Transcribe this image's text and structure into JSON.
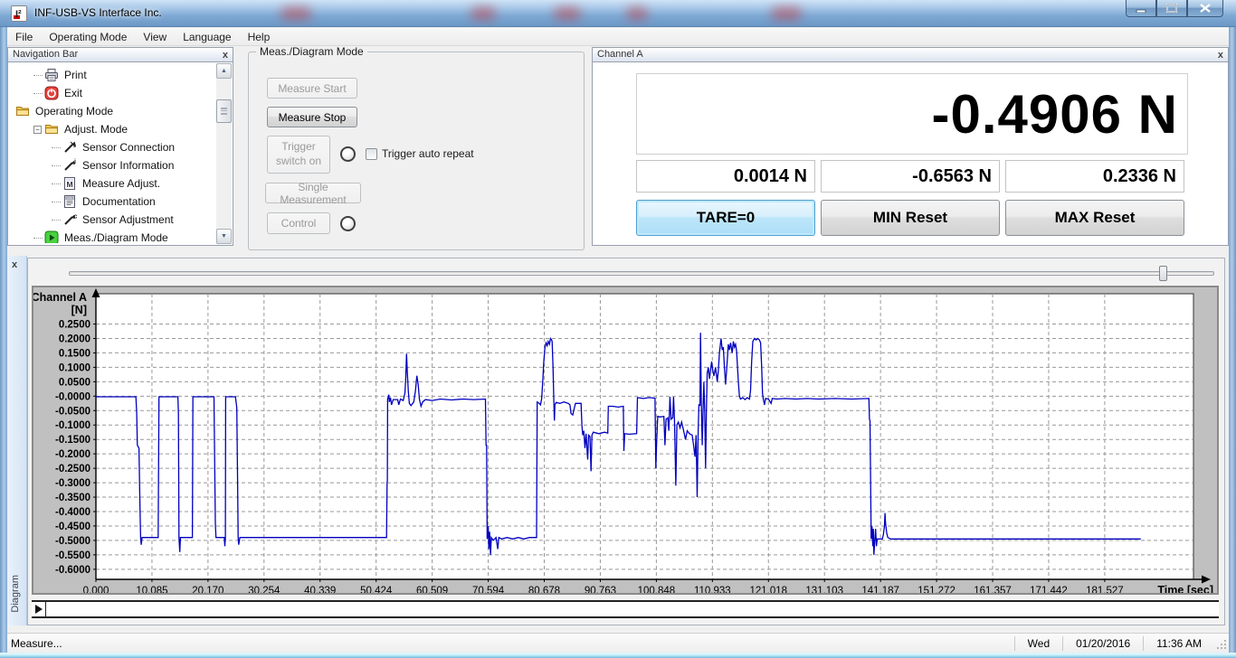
{
  "window": {
    "title": "INF-USB-VS Interface Inc."
  },
  "menu": [
    "File",
    "Operating Mode",
    "View",
    "Language",
    "Help"
  ],
  "nav": {
    "title": "Navigation Bar",
    "items": [
      {
        "label": "Print",
        "icon": "printer-icon",
        "level": 1
      },
      {
        "label": "Exit",
        "icon": "exit-icon",
        "level": 1
      },
      {
        "label": "Operating Mode",
        "icon": "folder-icon",
        "level": 0
      },
      {
        "label": "Adjust. Mode",
        "icon": "folder-icon",
        "level": 1,
        "expander": "minus"
      },
      {
        "label": "Sensor Connection",
        "icon": "sensor-connection-icon",
        "level": 2
      },
      {
        "label": "Sensor Information",
        "icon": "sensor-information-icon",
        "level": 2
      },
      {
        "label": "Measure Adjust.",
        "icon": "measure-adjust-icon",
        "level": 2
      },
      {
        "label": "Documentation",
        "icon": "documentation-icon",
        "level": 2
      },
      {
        "label": "Sensor Adjustment",
        "icon": "sensor-adjustment-icon",
        "level": 2
      },
      {
        "label": "Meas./Diagram Mode",
        "icon": "play-icon",
        "level": 1
      }
    ]
  },
  "meas": {
    "title": "Meas./Diagram Mode",
    "measure_start": "Measure Start",
    "measure_stop": "Measure Stop",
    "trigger_switch": "Trigger switch on",
    "single_measurement": "Single Measurement",
    "control": "Control",
    "trigger_auto_repeat": "Trigger auto repeat"
  },
  "channel": {
    "title": "Channel A",
    "current": "-0.4906 N",
    "tare": "0.0014 N",
    "min": "-0.6563 N",
    "max": "0.2336 N",
    "tare_button": "TARE=0",
    "min_button": "MIN Reset",
    "max_button": "MAX Reset"
  },
  "diagram_tab": "Diagram",
  "status": {
    "message": "Measure...",
    "day": "Wed",
    "date": "01/20/2016",
    "time": "11:36 AM"
  },
  "chart_data": {
    "type": "line",
    "title": "",
    "ylabel": "Channel A",
    "yunit": "[N]",
    "xlabel": "Time [sec]",
    "x_tick_labels": [
      "0.000",
      "10.085",
      "20.170",
      "30.254",
      "40.339",
      "50.424",
      "60.509",
      "70.594",
      "80.678",
      "90.763",
      "100.848",
      "110.933",
      "121.018",
      "131.103",
      "141.187",
      "151.272",
      "161.357",
      "171.442",
      "181.527"
    ],
    "y_tick_labels": [
      "0.2500",
      "0.2000",
      "0.1500",
      "0.1000",
      "0.0500",
      "-0.0000",
      "-0.0500",
      "-0.1000",
      "-0.1500",
      "-0.2000",
      "-0.2500",
      "-0.3000",
      "-0.3500",
      "-0.4000",
      "-0.4500",
      "-0.5000",
      "-0.5500",
      "-0.6000"
    ],
    "xlim": [
      0,
      197.5
    ],
    "ylim": [
      -0.635,
      0.355
    ],
    "grid": true,
    "legend": "none",
    "line_color": "#0000bf",
    "series": [
      {
        "name": "Channel A",
        "points": [
          [
            0,
            -0.002
          ],
          [
            7.2,
            -0.002
          ],
          [
            7.35,
            -0.06
          ],
          [
            7.45,
            -0.17
          ],
          [
            7.75,
            -0.18
          ],
          [
            7.9,
            -0.35
          ],
          [
            8.0,
            -0.445
          ],
          [
            8.05,
            -0.49
          ],
          [
            8.15,
            -0.515
          ],
          [
            8.3,
            -0.49
          ],
          [
            11.2,
            -0.49
          ],
          [
            11.35,
            -0.002
          ],
          [
            14.75,
            -0.002
          ],
          [
            14.85,
            -0.06
          ],
          [
            14.95,
            -0.49
          ],
          [
            15.1,
            -0.54
          ],
          [
            15.2,
            -0.49
          ],
          [
            17.35,
            -0.49
          ],
          [
            17.45,
            -0.002
          ],
          [
            21.25,
            -0.002
          ],
          [
            21.35,
            -0.18
          ],
          [
            21.5,
            -0.44
          ],
          [
            21.6,
            -0.49
          ],
          [
            23.1,
            -0.49
          ],
          [
            23.2,
            -0.52
          ],
          [
            23.3,
            -0.49
          ],
          [
            23.35,
            -0.002
          ],
          [
            25.1,
            -0.002
          ],
          [
            25.35,
            -0.04
          ],
          [
            25.5,
            -0.3
          ],
          [
            25.6,
            -0.49
          ],
          [
            25.7,
            -0.515
          ],
          [
            25.9,
            -0.49
          ],
          [
            52.3,
            -0.49
          ],
          [
            52.4,
            -0.3
          ],
          [
            52.45,
            -0.295
          ],
          [
            52.5,
            -0.01
          ],
          [
            52.7,
            0.005
          ],
          [
            52.8,
            -0.02
          ],
          [
            53.0,
            -0.005
          ],
          [
            53.2,
            -0.03
          ],
          [
            53.5,
            -0.012
          ],
          [
            54.3,
            -0.012
          ],
          [
            54.5,
            -0.03
          ],
          [
            54.8,
            -0.01
          ],
          [
            55.3,
            -0.015
          ],
          [
            55.6,
            0.01
          ],
          [
            55.75,
            0.06
          ],
          [
            55.9,
            0.147
          ],
          [
            56.05,
            0.08
          ],
          [
            56.2,
            0.02
          ],
          [
            56.4,
            -0.025
          ],
          [
            56.7,
            -0.033
          ],
          [
            57.2,
            -0.02
          ],
          [
            57.5,
            0.02
          ],
          [
            57.75,
            0.071
          ],
          [
            58.0,
            0.04
          ],
          [
            58.2,
            -0.01
          ],
          [
            58.5,
            -0.035
          ],
          [
            58.8,
            -0.02
          ],
          [
            59.3,
            -0.012
          ],
          [
            60.5,
            -0.015
          ],
          [
            62,
            -0.01
          ],
          [
            64,
            -0.013
          ],
          [
            66,
            -0.01
          ],
          [
            68,
            -0.012
          ],
          [
            70.1,
            -0.01
          ],
          [
            70.2,
            -0.17
          ],
          [
            70.3,
            -0.17
          ],
          [
            70.4,
            -0.495
          ],
          [
            70.6,
            -0.45
          ],
          [
            70.7,
            -0.53
          ],
          [
            70.85,
            -0.47
          ],
          [
            71.0,
            -0.55
          ],
          [
            71.15,
            -0.49
          ],
          [
            71.5,
            -0.5
          ],
          [
            72.0,
            -0.49
          ],
          [
            72.3,
            -0.53
          ],
          [
            72.5,
            -0.49
          ],
          [
            73,
            -0.495
          ],
          [
            74,
            -0.49
          ],
          [
            75,
            -0.495
          ],
          [
            76,
            -0.49
          ],
          [
            77,
            -0.495
          ],
          [
            78,
            -0.49
          ],
          [
            79.3,
            -0.49
          ],
          [
            79.4,
            -0.02
          ],
          [
            79.8,
            -0.025
          ],
          [
            80.0,
            -0.03
          ],
          [
            80.2,
            -0.01
          ],
          [
            80.4,
            0.05
          ],
          [
            80.6,
            0.12
          ],
          [
            80.8,
            0.17
          ],
          [
            81.0,
            0.185
          ],
          [
            81.2,
            0.175
          ],
          [
            81.4,
            0.19
          ],
          [
            81.6,
            0.18
          ],
          [
            81.8,
            0.2
          ],
          [
            82.0,
            0.195
          ],
          [
            82.1,
            0.19
          ],
          [
            82.25,
            0.1
          ],
          [
            82.4,
            -0.02
          ],
          [
            82.5,
            -0.085
          ],
          [
            82.6,
            -0.03
          ],
          [
            82.8,
            -0.022
          ],
          [
            83.5,
            -0.025
          ],
          [
            84.2,
            -0.02
          ],
          [
            85.0,
            -0.025
          ],
          [
            85.3,
            -0.03
          ],
          [
            85.5,
            -0.06
          ],
          [
            85.8,
            -0.065
          ],
          [
            86.1,
            -0.04
          ],
          [
            86.3,
            -0.025
          ],
          [
            87.3,
            -0.025
          ],
          [
            87.45,
            -0.1
          ],
          [
            87.6,
            -0.135
          ],
          [
            87.8,
            -0.12
          ],
          [
            88.0,
            -0.18
          ],
          [
            88.2,
            -0.13
          ],
          [
            88.5,
            -0.22
          ],
          [
            88.65,
            -0.135
          ],
          [
            88.9,
            -0.14
          ],
          [
            89.1,
            -0.26
          ],
          [
            89.25,
            -0.135
          ],
          [
            89.5,
            -0.125
          ],
          [
            90.5,
            -0.13
          ],
          [
            91.5,
            -0.125
          ],
          [
            92.1,
            -0.128
          ],
          [
            92.2,
            -0.035
          ],
          [
            93.0,
            -0.035
          ],
          [
            94.0,
            -0.038
          ],
          [
            94.9,
            -0.035
          ],
          [
            95.0,
            -0.19
          ],
          [
            95.15,
            -0.13
          ],
          [
            96.0,
            -0.132
          ],
          [
            97.3,
            -0.13
          ],
          [
            97.45,
            -0.005
          ],
          [
            98.5,
            -0.008
          ],
          [
            99.5,
            -0.005
          ],
          [
            100.6,
            -0.007
          ],
          [
            100.75,
            -0.25
          ],
          [
            100.9,
            -0.16
          ],
          [
            101.1,
            -0.07
          ],
          [
            101.5,
            -0.072
          ],
          [
            102.2,
            -0.07
          ],
          [
            102.4,
            -0.17
          ],
          [
            102.6,
            -0.08
          ],
          [
            102.9,
            -0.075
          ],
          [
            103.1,
            -0.12
          ],
          [
            103.3,
            -0.002
          ],
          [
            103.5,
            -0.08
          ],
          [
            103.8,
            -0.075
          ],
          [
            103.95,
            -0.002
          ],
          [
            104.1,
            -0.08
          ],
          [
            104.35,
            -0.31
          ],
          [
            104.55,
            -0.1
          ],
          [
            104.8,
            -0.09
          ],
          [
            105.1,
            -0.11
          ],
          [
            105.4,
            -0.09
          ],
          [
            105.7,
            -0.115
          ],
          [
            106.1,
            -0.15
          ],
          [
            106.4,
            -0.12
          ],
          [
            106.8,
            -0.13
          ],
          [
            107.3,
            -0.135
          ],
          [
            107.55,
            -0.17
          ],
          [
            107.8,
            -0.21
          ],
          [
            108.0,
            -0.135
          ],
          [
            108.2,
            -0.35
          ],
          [
            108.35,
            -0.135
          ],
          [
            108.5,
            -0.03
          ],
          [
            108.7,
            -0.032
          ],
          [
            108.8,
            0.22
          ],
          [
            108.95,
            -0.03
          ],
          [
            109.1,
            -0.17
          ],
          [
            109.25,
            -0.05
          ],
          [
            109.4,
            0.05
          ],
          [
            109.55,
            -0.05
          ],
          [
            109.7,
            -0.25
          ],
          [
            109.85,
            -0.05
          ],
          [
            110.0,
            0.08
          ],
          [
            110.2,
            0.1
          ],
          [
            110.4,
            0.06
          ],
          [
            110.6,
            0.09
          ],
          [
            110.8,
            0.12
          ],
          [
            111.0,
            0.09
          ],
          [
            111.2,
            0.07
          ],
          [
            111.5,
            0.1
          ],
          [
            111.8,
            0.05
          ],
          [
            112.0,
            0.09
          ],
          [
            112.2,
            0.15
          ],
          [
            112.5,
            0.2
          ],
          [
            112.7,
            0.16
          ],
          [
            112.9,
            0.17
          ],
          [
            113.1,
            0.1
          ],
          [
            113.3,
            0.04
          ],
          [
            113.6,
            0.12
          ],
          [
            113.8,
            0.18
          ],
          [
            114.0,
            0.16
          ],
          [
            114.2,
            0.185
          ],
          [
            114.5,
            0.15
          ],
          [
            114.7,
            0.19
          ],
          [
            114.9,
            0.17
          ],
          [
            115.1,
            0.18
          ],
          [
            115.3,
            0.155
          ],
          [
            115.6,
            0.05
          ],
          [
            115.8,
            0.0
          ],
          [
            116.0,
            -0.01
          ],
          [
            116.4,
            -0.005
          ],
          [
            116.8,
            -0.012
          ],
          [
            117.2,
            -0.005
          ],
          [
            117.6,
            -0.01
          ],
          [
            117.8,
            0.02
          ],
          [
            118.0,
            0.12
          ],
          [
            118.2,
            0.19
          ],
          [
            118.5,
            0.2
          ],
          [
            118.8,
            0.195
          ],
          [
            119.1,
            0.2
          ],
          [
            119.4,
            0.195
          ],
          [
            119.6,
            0.185
          ],
          [
            119.8,
            0.1
          ],
          [
            119.95,
            0.01
          ],
          [
            120.1,
            -0.01
          ],
          [
            120.3,
            -0.03
          ],
          [
            120.5,
            -0.008
          ],
          [
            121.0,
            -0.01
          ],
          [
            121.5,
            -0.025
          ],
          [
            121.7,
            -0.008
          ],
          [
            122.5,
            -0.01
          ],
          [
            124,
            -0.008
          ],
          [
            126,
            -0.01
          ],
          [
            128,
            -0.008
          ],
          [
            130,
            -0.01
          ],
          [
            133,
            -0.008
          ],
          [
            136,
            -0.01
          ],
          [
            139.1,
            -0.008
          ],
          [
            139.2,
            -0.08
          ],
          [
            139.3,
            -0.085
          ],
          [
            139.4,
            -0.3
          ],
          [
            139.5,
            -0.495
          ],
          [
            139.65,
            -0.45
          ],
          [
            139.8,
            -0.52
          ],
          [
            139.9,
            -0.46
          ],
          [
            140.0,
            -0.55
          ],
          [
            140.15,
            -0.5
          ],
          [
            140.3,
            -0.46
          ],
          [
            140.45,
            -0.52
          ],
          [
            140.6,
            -0.495
          ],
          [
            141.5,
            -0.495
          ],
          [
            141.7,
            -0.48
          ],
          [
            141.9,
            -0.45
          ],
          [
            142.0,
            -0.405
          ],
          [
            142.1,
            -0.44
          ],
          [
            142.3,
            -0.475
          ],
          [
            142.5,
            -0.49
          ],
          [
            143.0,
            -0.495
          ],
          [
            150,
            -0.495
          ],
          [
            160,
            -0.495
          ],
          [
            170,
            -0.495
          ],
          [
            180,
            -0.495
          ],
          [
            188,
            -0.495
          ]
        ]
      }
    ]
  }
}
